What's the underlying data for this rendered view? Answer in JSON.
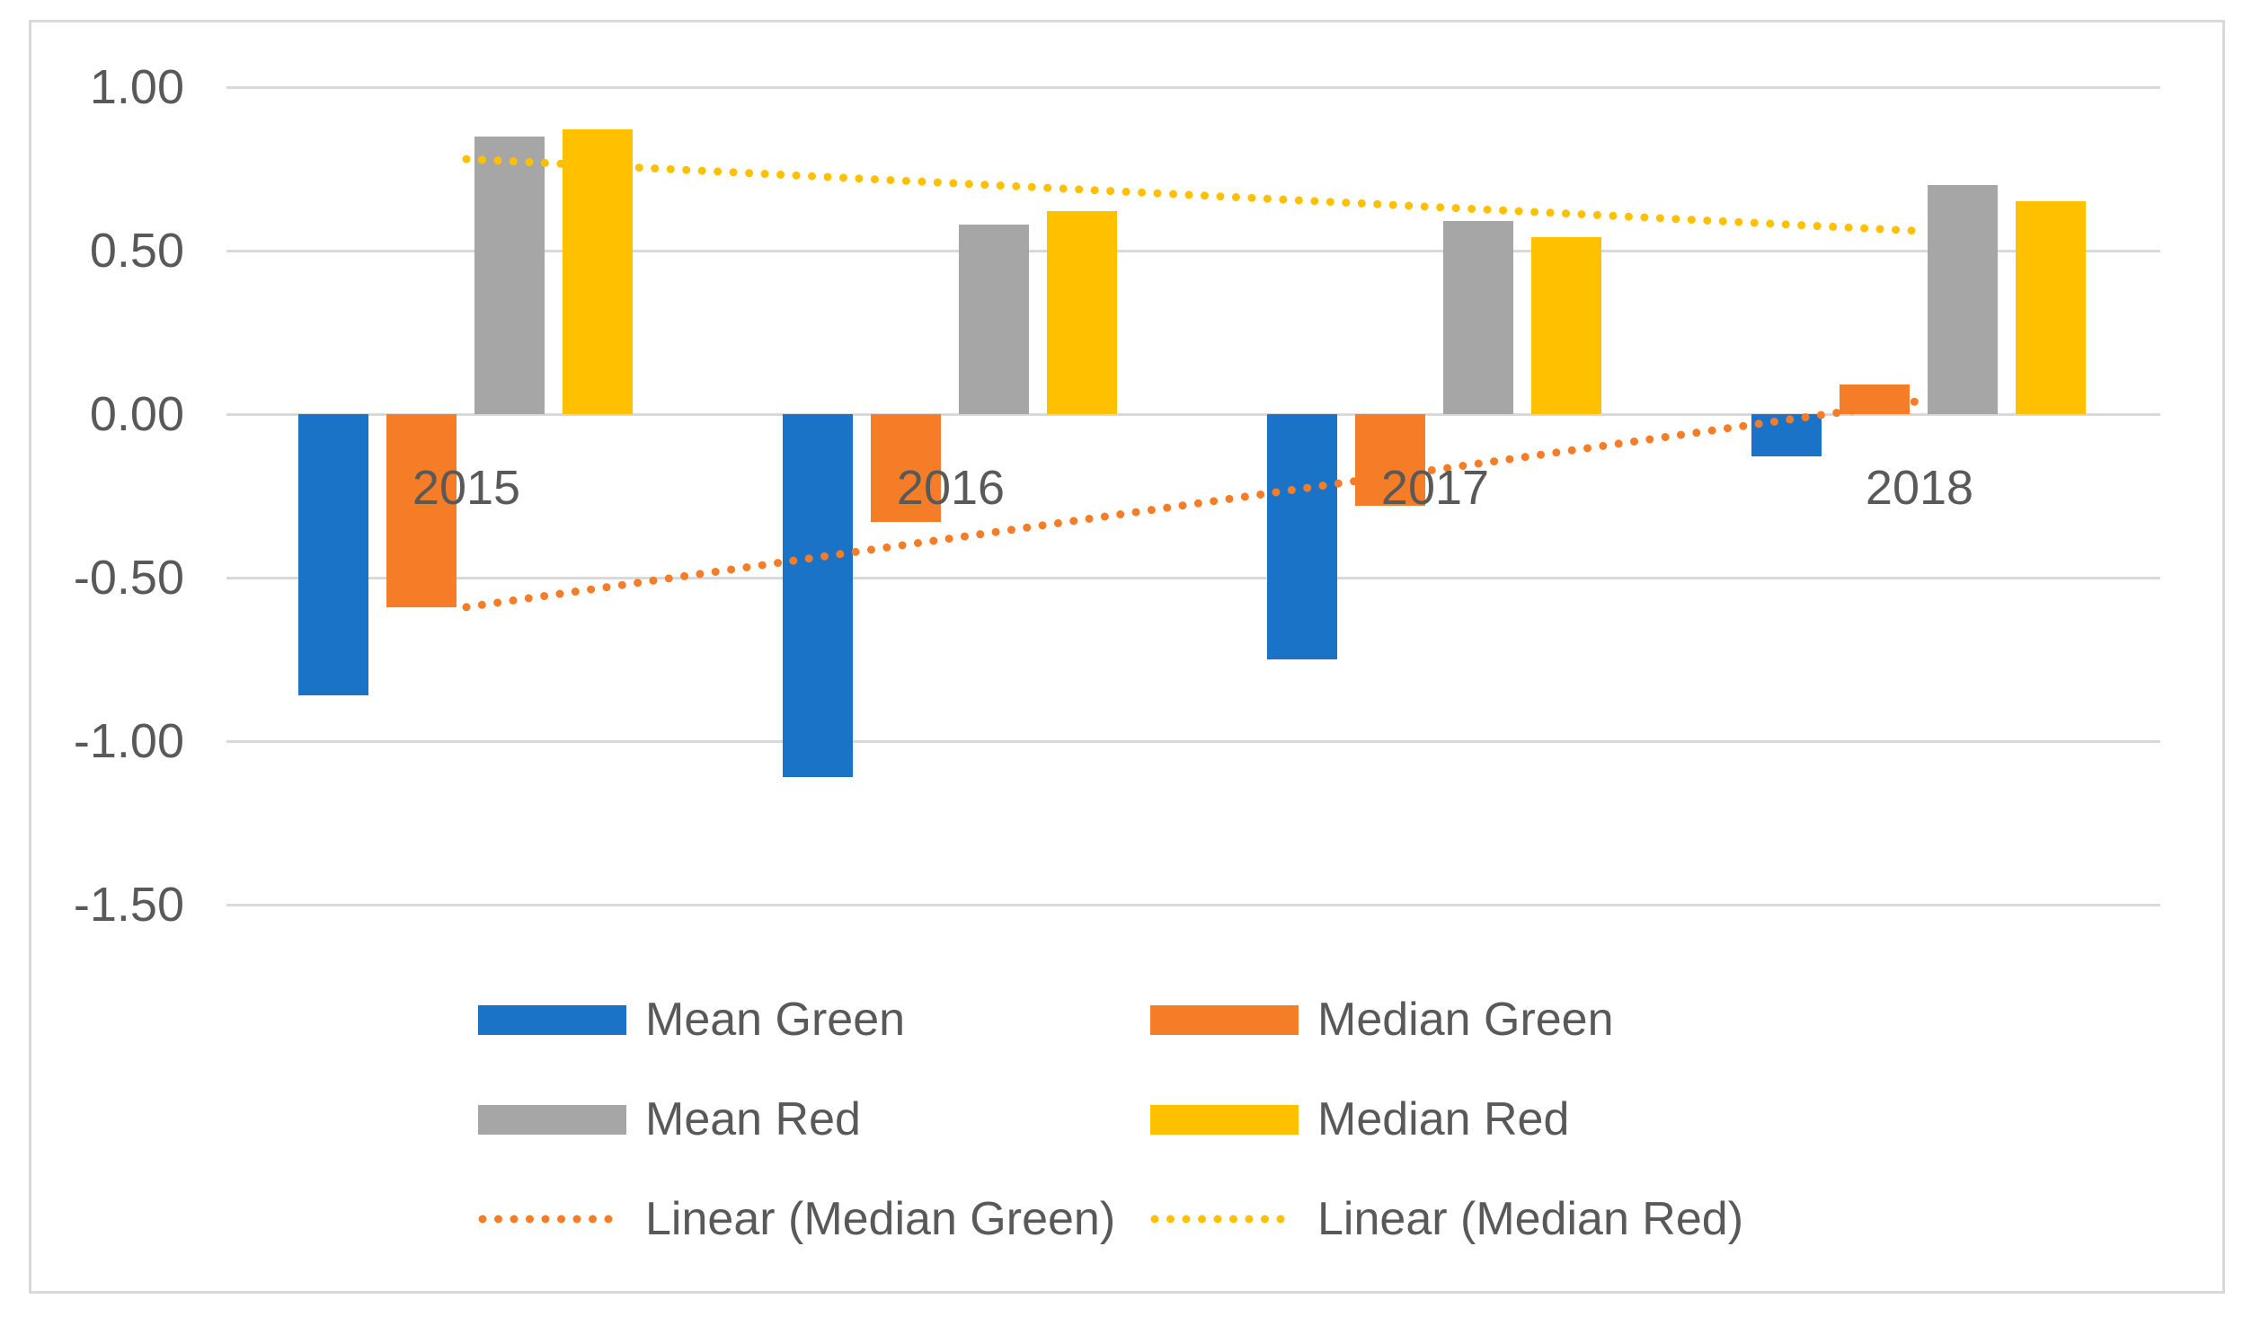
{
  "chart_data": {
    "type": "bar",
    "title": "",
    "xlabel": "",
    "ylabel": "",
    "categories": [
      "2015",
      "2016",
      "2017",
      "2018"
    ],
    "series": [
      {
        "name": "Mean Green",
        "color": "#1B73C8",
        "values": [
          -0.86,
          -1.11,
          -0.75,
          -0.13
        ]
      },
      {
        "name": "Median Green",
        "color": "#F67D28",
        "values": [
          -0.59,
          -0.33,
          -0.28,
          0.09
        ]
      },
      {
        "name": "Mean Red",
        "color": "#A6A6A6",
        "values": [
          0.85,
          0.58,
          0.59,
          0.7
        ]
      },
      {
        "name": "Median Red",
        "color": "#FFC000",
        "values": [
          0.87,
          0.62,
          0.54,
          0.65
        ]
      }
    ],
    "trendlines": [
      {
        "name": "Linear (Median Green)",
        "series": "Median Green",
        "color": "#F67D28",
        "style": "dotted",
        "start_value": -0.59,
        "end_value": 0.04
      },
      {
        "name": "Linear (Median Red)",
        "series": "Median Red",
        "color": "#FFC000",
        "style": "dotted",
        "start_value": 0.78,
        "end_value": 0.56
      }
    ],
    "y_axis": {
      "min": -1.5,
      "max": 1.0,
      "step": 0.5,
      "tick_labels": [
        "1.00",
        "0.50",
        "0.00",
        "-0.50",
        "-1.00",
        "-1.50"
      ]
    },
    "grid": true,
    "legend_position": "bottom",
    "legend_columns": [
      [
        "Mean Green",
        "Mean Red",
        "Linear (Median Green)"
      ],
      [
        "Median Green",
        "Median Red",
        "Linear (Median Red)"
      ]
    ],
    "colors": {
      "grid_line": "#D9D9D9",
      "border": "#D9D9D9",
      "text": "#595959",
      "background": "#FFFFFF"
    }
  }
}
